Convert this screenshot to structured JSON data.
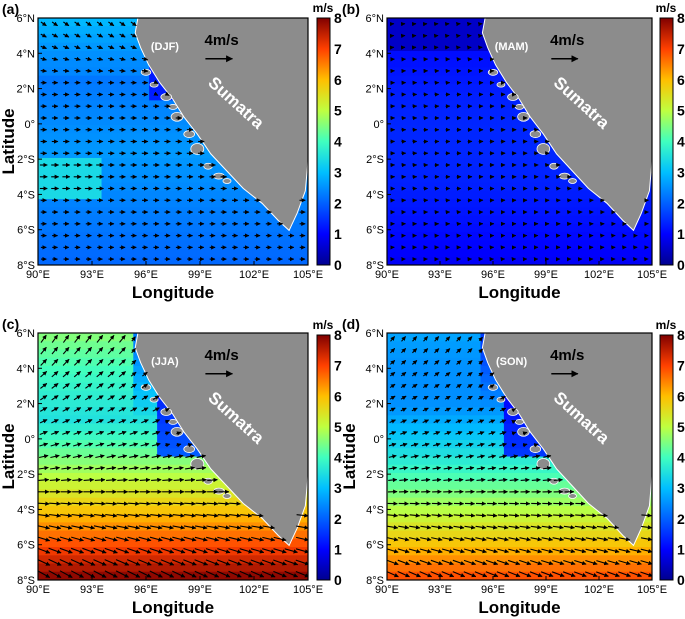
{
  "figure": {
    "lat_ticks": [
      "6°N",
      "4°N",
      "2°N",
      "0°",
      "2°S",
      "4°S",
      "6°S",
      "8°S"
    ],
    "lon_ticks": [
      "90°E",
      "93°E",
      "96°E",
      "99°E",
      "102°E",
      "105°E"
    ],
    "colorbar": {
      "unit": "m/s",
      "ticks": [
        "0",
        "1",
        "2",
        "3",
        "4",
        "5",
        "6",
        "7",
        "8"
      ],
      "range": [
        0,
        8
      ]
    },
    "x_label": "Longitude",
    "y_label": "Latitude",
    "island_label": "Sumatra",
    "reference_vector": "4m/s",
    "colors": {
      "land": "#8c8c8c",
      "arrow": "#000000"
    }
  },
  "panels": [
    {
      "tag": "(a)",
      "season": "(DJF)",
      "show_y_label": true,
      "speed_range_m_s": [
        0.5,
        3.6
      ],
      "dominant_flow": "eastward (west-to-east) across the basin, south-eastward off northern tip"
    },
    {
      "tag": "(b)",
      "season": "(MAM)",
      "show_y_label": false,
      "speed_range_m_s": [
        0.3,
        1.6
      ],
      "dominant_flow": "weak eastward"
    },
    {
      "tag": "(c)",
      "season": "(JJA)",
      "show_y_label": true,
      "speed_range_m_s": [
        0.5,
        8
      ],
      "dominant_flow": "south-easterly trades in south turning to south-westerly monsoon in north"
    },
    {
      "tag": "(d)",
      "season": "(SON)",
      "show_y_label": true,
      "speed_range_m_s": [
        0.5,
        7.5
      ],
      "dominant_flow": "south-easterly in south turning north-eastward in north"
    }
  ]
}
